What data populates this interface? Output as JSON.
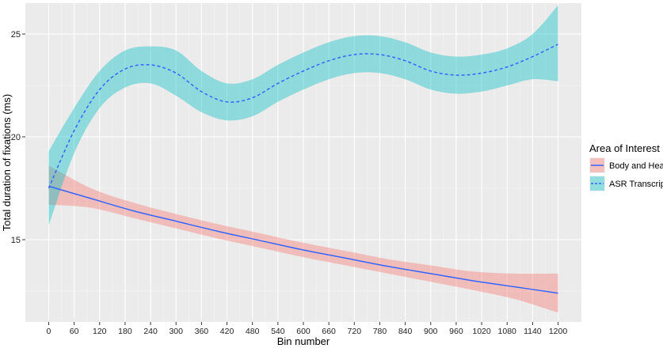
{
  "chart_data": {
    "type": "line",
    "title": "",
    "xlabel": "Bin number",
    "ylabel": "Total duration of fixations (ms)",
    "xlim": [
      -55,
      1255
    ],
    "ylim": [
      11.0,
      26.5
    ],
    "x_ticks": [
      0,
      60,
      120,
      180,
      240,
      300,
      360,
      420,
      480,
      540,
      600,
      660,
      720,
      780,
      840,
      900,
      960,
      1020,
      1080,
      1140,
      1200
    ],
    "y_ticks": [
      15,
      20,
      25
    ],
    "grid": true,
    "legend": {
      "title": "Area of Interest",
      "placement": "right"
    },
    "series": [
      {
        "name": "Body and Head",
        "line_style": "solid",
        "line_color": "#3366ff",
        "band_color": "#f8766d",
        "x": [
          0,
          100,
          200,
          300,
          400,
          500,
          600,
          700,
          800,
          900,
          1000,
          1100,
          1200
        ],
        "y": [
          17.6,
          17.0,
          16.4,
          15.9,
          15.4,
          14.95,
          14.5,
          14.1,
          13.7,
          13.35,
          13.0,
          12.7,
          12.4
        ],
        "lower": [
          16.7,
          16.55,
          16.05,
          15.55,
          15.05,
          14.6,
          14.15,
          13.75,
          13.35,
          12.95,
          12.55,
          12.1,
          11.45
        ],
        "upper": [
          18.6,
          17.5,
          16.8,
          16.25,
          15.75,
          15.3,
          14.85,
          14.45,
          14.05,
          13.75,
          13.45,
          13.35,
          13.35
        ]
      },
      {
        "name": "ASR Transcript",
        "line_style": "dashed",
        "line_color": "#3366ff",
        "band_color": "#00bfc4",
        "x": [
          0,
          60,
          120,
          180,
          240,
          300,
          360,
          420,
          480,
          540,
          600,
          660,
          720,
          780,
          840,
          900,
          960,
          1020,
          1080,
          1140,
          1200
        ],
        "y": [
          17.5,
          20.3,
          22.3,
          23.3,
          23.5,
          23.1,
          22.2,
          21.7,
          21.9,
          22.6,
          23.2,
          23.7,
          24.0,
          24.0,
          23.7,
          23.2,
          23.0,
          23.1,
          23.4,
          23.9,
          24.5
        ],
        "lower": [
          15.7,
          19.2,
          21.4,
          22.4,
          22.6,
          22.0,
          21.2,
          20.8,
          21.0,
          21.7,
          22.3,
          22.8,
          23.1,
          23.1,
          22.8,
          22.3,
          22.1,
          22.2,
          22.5,
          22.8,
          22.7
        ],
        "upper": [
          19.3,
          21.4,
          23.2,
          24.2,
          24.4,
          24.2,
          23.2,
          22.6,
          22.8,
          23.5,
          24.1,
          24.6,
          24.9,
          24.9,
          24.6,
          24.1,
          23.9,
          24.0,
          24.3,
          25.0,
          26.4
        ]
      }
    ]
  }
}
